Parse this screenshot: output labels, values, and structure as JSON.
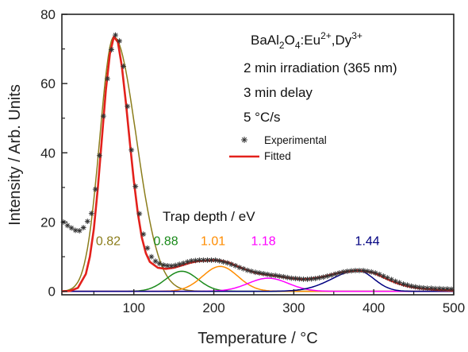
{
  "chart_data": {
    "type": "line",
    "xlabel": "Temperature / °C",
    "ylabel": "Intensity / Arb. Units",
    "xlim": [
      10,
      500
    ],
    "ylim": [
      -1,
      80
    ],
    "x_ticks": [
      "100",
      "200",
      "300",
      "400",
      "500"
    ],
    "y_ticks": [
      "0",
      "20",
      "40",
      "60",
      "80"
    ],
    "grid": false,
    "annotations": {
      "compound_prefix": "BaAl",
      "compound_sub1": "2",
      "compound_mid": "O",
      "compound_sub2": "4",
      "compound_eu": ":Eu",
      "compound_sup1": "2+",
      "compound_dy": ",Dy",
      "compound_sup2": "3+",
      "line1": "2 min irradiation (365 nm)",
      "line2": "3 min delay",
      "line3": "5 °C/s",
      "trap_title": "Trap depth / eV"
    },
    "legend": {
      "position": "top-right",
      "experimental_label": "Experimental",
      "fitted_label": "Fitted"
    },
    "series": [
      {
        "name": "Experimental",
        "marker": "asterisk",
        "color": "#333333",
        "x": [
          12,
          17,
          22,
          27,
          32,
          37,
          42,
          47,
          52,
          57,
          62,
          67,
          72,
          77,
          82,
          87,
          92,
          97,
          102,
          107,
          112,
          117,
          122,
          127,
          132,
          137,
          142,
          147,
          152,
          157,
          162,
          167,
          172,
          177,
          182,
          187,
          192,
          197,
          202,
          207,
          212,
          217,
          222,
          227,
          232,
          237,
          242,
          247,
          252,
          257,
          262,
          267,
          272,
          277,
          282,
          287,
          292,
          297,
          302,
          307,
          312,
          317,
          322,
          327,
          332,
          337,
          342,
          347,
          352,
          357,
          362,
          367,
          372,
          377,
          382,
          387,
          392,
          397,
          402,
          407,
          412,
          417,
          422,
          427,
          432,
          437,
          442,
          447,
          452,
          457,
          462,
          467,
          472,
          477,
          482,
          487,
          492,
          497
        ],
        "y": [
          20.0,
          19.0,
          18.3,
          17.6,
          17.5,
          18.4,
          20.2,
          22.5,
          29.5,
          39.2,
          50.6,
          61.4,
          69.8,
          74.0,
          72.3,
          65.0,
          53.4,
          40.8,
          30.3,
          22.4,
          16.5,
          12.5,
          10.0,
          8.7,
          8.0,
          7.6,
          7.4,
          7.3,
          7.5,
          7.8,
          8.1,
          8.5,
          8.8,
          8.9,
          9.0,
          9.0,
          9.0,
          9.0,
          9.0,
          8.8,
          8.5,
          8.2,
          7.8,
          7.4,
          6.9,
          6.5,
          6.1,
          5.8,
          5.5,
          5.3,
          5.1,
          4.9,
          4.7,
          4.6,
          4.4,
          4.2,
          4.0,
          3.8,
          3.7,
          3.6,
          3.5,
          3.5,
          3.6,
          3.7,
          3.9,
          4.1,
          4.4,
          4.7,
          5.0,
          5.3,
          5.6,
          5.8,
          5.9,
          6.0,
          6.0,
          6.0,
          5.8,
          5.6,
          5.3,
          4.9,
          4.4,
          3.9,
          3.4,
          2.9,
          2.5,
          2.1,
          1.8,
          1.5,
          1.3,
          1.1,
          1.0,
          0.9,
          0.9,
          0.8,
          0.8,
          0.7,
          0.7,
          0.6
        ]
      },
      {
        "name": "Fitted",
        "color": "#e3211c",
        "x": [
          10,
          20,
          30,
          40,
          45,
          50,
          55,
          60,
          65,
          70,
          75,
          80,
          85,
          90,
          95,
          100,
          105,
          110,
          115,
          120,
          130,
          140,
          150,
          160,
          170,
          180,
          190,
          200,
          210,
          220,
          230,
          240,
          250,
          260,
          270,
          280,
          290,
          300,
          310,
          320,
          330,
          340,
          350,
          360,
          370,
          380,
          390,
          400,
          410,
          420,
          430,
          440,
          450,
          460,
          470,
          480,
          490,
          500
        ],
        "y": [
          0.0,
          0.1,
          1.0,
          5.0,
          10.0,
          18.0,
          30.0,
          44.0,
          58.0,
          68.5,
          73.5,
          72.0,
          65.0,
          54.5,
          43.0,
          32.0,
          22.5,
          15.5,
          11.0,
          8.5,
          6.8,
          6.5,
          6.8,
          7.5,
          8.2,
          8.7,
          8.9,
          9.0,
          8.8,
          8.2,
          7.2,
          6.3,
          5.5,
          5.0,
          4.7,
          4.4,
          4.0,
          3.7,
          3.5,
          3.6,
          3.9,
          4.4,
          5.0,
          5.5,
          5.8,
          6.0,
          5.8,
          5.3,
          4.3,
          3.2,
          2.3,
          1.6,
          1.1,
          0.8,
          0.6,
          0.4,
          0.3,
          0.2
        ]
      },
      {
        "name": "0.82",
        "color": "#8b7d1b",
        "peak": 75,
        "height": 73.5,
        "sigma": 17.5,
        "skew": 28,
        "label_x": 68,
        "label_y": 17
      },
      {
        "name": "0.88",
        "color": "#1a8a1a",
        "peak": 160,
        "height": 5.8,
        "sigma": 20,
        "skew": 20,
        "label_x": 140,
        "label_y": 17
      },
      {
        "name": "1.01",
        "color": "#ff8c00",
        "peak": 208,
        "height": 7.2,
        "sigma": 22,
        "skew": 22,
        "label_x": 199,
        "label_y": 17
      },
      {
        "name": "1.18",
        "color": "#ff00ff",
        "peak": 268,
        "height": 3.8,
        "sigma": 25,
        "skew": 25,
        "label_x": 262,
        "label_y": 17
      },
      {
        "name": "1.44",
        "color": "#000080",
        "peak": 380,
        "height": 6.0,
        "sigma": 32,
        "skew": 20,
        "label_x": 392,
        "label_y": 17
      }
    ]
  }
}
